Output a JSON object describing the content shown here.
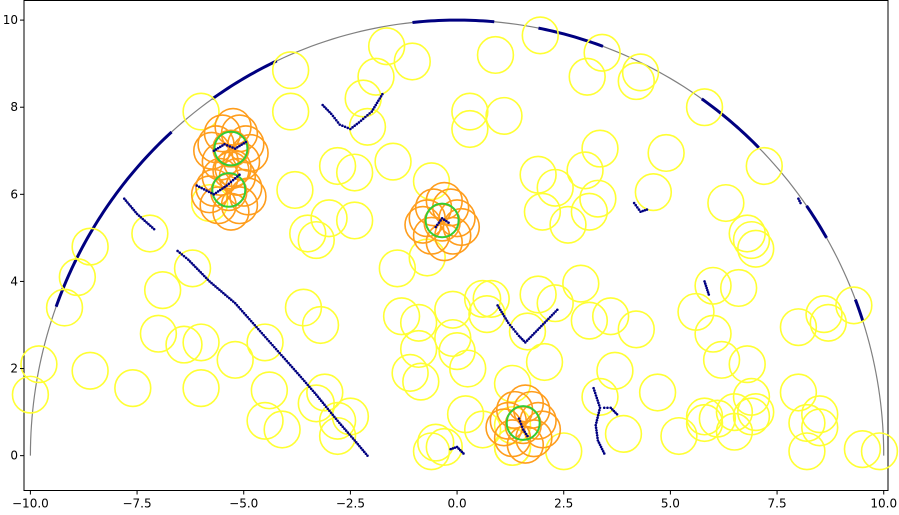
{
  "chart_data": {
    "type": "scatter",
    "title": "",
    "xlabel": "",
    "ylabel": "",
    "xlim": [
      -10.15,
      10.1
    ],
    "ylim": [
      -0.8,
      10.45
    ],
    "grid": false,
    "x_ticks": [
      -10.0,
      -7.5,
      -5.0,
      -2.5,
      0.0,
      2.5,
      5.0,
      7.5,
      10.0
    ],
    "x_tick_labels": [
      "−10.0",
      "−7.5",
      "−5.0",
      "−2.5",
      "0.0",
      "2.5",
      "5.0",
      "7.5",
      "10.0"
    ],
    "y_ticks": [
      0,
      2,
      4,
      6,
      8,
      10
    ],
    "y_tick_labels": [
      "0",
      "2",
      "4",
      "6",
      "8",
      "10"
    ],
    "colors": {
      "boundary": "#808080",
      "arc_highlight": "#000080",
      "yellow": "#ffff33",
      "orange": "#ff9d1c",
      "green": "#33cc33",
      "trail": "#000080"
    },
    "boundary_radius": 10,
    "arc_highlights_deg": [
      [
        160,
        132
      ],
      [
        125,
        115
      ],
      [
        96,
        85
      ],
      [
        79,
        70
      ],
      [
        55,
        45
      ],
      [
        35,
        30
      ],
      [
        21,
        18
      ]
    ],
    "circle_radius": 0.42,
    "yellow_circles": [
      [
        -10,
        1.4
      ],
      [
        -9.8,
        2.1
      ],
      [
        -9.2,
        3.4
      ],
      [
        -8.9,
        4.1
      ],
      [
        -8.6,
        4.8
      ],
      [
        -8.6,
        1.95
      ],
      [
        -7.6,
        1.55
      ],
      [
        -7.2,
        5.1
      ],
      [
        -6.9,
        3.8
      ],
      [
        -7.0,
        2.8
      ],
      [
        -6.4,
        2.55
      ],
      [
        -6.2,
        4.3
      ],
      [
        -6.0,
        7.9
      ],
      [
        -6.0,
        2.6
      ],
      [
        -6.0,
        1.55
      ],
      [
        -5.8,
        5.8
      ],
      [
        -5.2,
        2.2
      ],
      [
        -4.5,
        2.6
      ],
      [
        -4.4,
        1.5
      ],
      [
        -4.5,
        0.8
      ],
      [
        -4.1,
        0.6
      ],
      [
        -3.9,
        8.85
      ],
      [
        -3.9,
        7.9
      ],
      [
        -3.8,
        6.1
      ],
      [
        -3.6,
        3.4
      ],
      [
        -3.5,
        5.1
      ],
      [
        -3.3,
        4.95
      ],
      [
        -3.3,
        1.2
      ],
      [
        -3.1,
        1.45
      ],
      [
        -3.2,
        3.0
      ],
      [
        -3.0,
        5.45
      ],
      [
        -2.8,
        6.65
      ],
      [
        -2.4,
        6.5
      ],
      [
        -2.8,
        0.45
      ],
      [
        -2.8,
        0.8
      ],
      [
        -2.5,
        0.9
      ],
      [
        -2.4,
        5.4
      ],
      [
        -2.2,
        8.2
      ],
      [
        -2.1,
        7.55
      ],
      [
        -1.9,
        8.7
      ],
      [
        -1.65,
        9.4
      ],
      [
        -1.5,
        6.75
      ],
      [
        -1.4,
        4.3
      ],
      [
        -1.3,
        3.2
      ],
      [
        -1.05,
        9.05
      ],
      [
        -0.9,
        3.05
      ],
      [
        -0.9,
        2.45
      ],
      [
        -0.85,
        1.7
      ],
      [
        -1.1,
        1.9
      ],
      [
        -0.7,
        4.55
      ],
      [
        -0.6,
        6.3
      ],
      [
        -0.6,
        0.1
      ],
      [
        -0.5,
        0.3
      ],
      [
        -0.3,
        0.2
      ],
      [
        -0.1,
        3.35
      ],
      [
        -0.1,
        2.7
      ],
      [
        0.0,
        2.4
      ],
      [
        0.3,
        7.9
      ],
      [
        0.3,
        7.5
      ],
      [
        0.25,
        2.0
      ],
      [
        0.2,
        0.95
      ],
      [
        0.6,
        3.6
      ],
      [
        0.7,
        3.25
      ],
      [
        0.6,
        0.6
      ],
      [
        0.8,
        3.6
      ],
      [
        0.9,
        9.2
      ],
      [
        1.1,
        7.8
      ],
      [
        1.3,
        1.65
      ],
      [
        1.3,
        0.2
      ],
      [
        1.3,
        0.7
      ],
      [
        1.3,
        0.2
      ],
      [
        1.65,
        2.85
      ],
      [
        1.9,
        6.45
      ],
      [
        1.9,
        3.7
      ],
      [
        1.95,
        9.65
      ],
      [
        2.0,
        5.6
      ],
      [
        2.05,
        2.15
      ],
      [
        2.3,
        3.5
      ],
      [
        2.3,
        6.15
      ],
      [
        2.5,
        0.1
      ],
      [
        2.6,
        5.3
      ],
      [
        2.9,
        3.95
      ],
      [
        3.0,
        6.55
      ],
      [
        3.05,
        8.7
      ],
      [
        3.1,
        5.6
      ],
      [
        3.1,
        3.1
      ],
      [
        3.3,
        5.9
      ],
      [
        3.35,
        7.05
      ],
      [
        3.35,
        1.35
      ],
      [
        3.4,
        9.25
      ],
      [
        3.6,
        3.2
      ],
      [
        3.7,
        1.95
      ],
      [
        3.9,
        0.5
      ],
      [
        4.2,
        2.9
      ],
      [
        4.2,
        8.6
      ],
      [
        4.3,
        8.8
      ],
      [
        4.6,
        6.05
      ],
      [
        4.7,
        1.45
      ],
      [
        4.9,
        6.95
      ],
      [
        5.2,
        0.45
      ],
      [
        5.6,
        3.3
      ],
      [
        5.8,
        0.9
      ],
      [
        5.8,
        0.75
      ],
      [
        5.8,
        8.0
      ],
      [
        6.0,
        2.8
      ],
      [
        6.0,
        3.9
      ],
      [
        6.1,
        0.85
      ],
      [
        6.2,
        2.2
      ],
      [
        6.3,
        5.8
      ],
      [
        6.5,
        0.55
      ],
      [
        6.5,
        1.0
      ],
      [
        6.6,
        3.85
      ],
      [
        6.8,
        2.1
      ],
      [
        6.8,
        5.1
      ],
      [
        6.9,
        1.35
      ],
      [
        6.9,
        0.9
      ],
      [
        6.9,
        4.95
      ],
      [
        7.0,
        4.75
      ],
      [
        7.0,
        1.0
      ],
      [
        7.2,
        6.65
      ],
      [
        8.0,
        2.95
      ],
      [
        8.0,
        1.45
      ],
      [
        8.2,
        0.75
      ],
      [
        8.2,
        0.1
      ],
      [
        8.5,
        0.95
      ],
      [
        8.5,
        0.65
      ],
      [
        8.6,
        3.25
      ],
      [
        8.7,
        3.05
      ],
      [
        9.3,
        3.45
      ],
      [
        9.5,
        0.15
      ],
      [
        9.9,
        0.1
      ]
    ],
    "orange_clusters": [
      {
        "cx": -5.3,
        "cy": 7.05
      },
      {
        "cx": -5.35,
        "cy": 6.05
      },
      {
        "cx": -0.35,
        "cy": 5.35
      },
      {
        "cx": 1.55,
        "cy": 0.7
      }
    ],
    "orange_offsets": [
      [
        0,
        0
      ],
      [
        0.35,
        0.1
      ],
      [
        -0.35,
        0.1
      ],
      [
        0.2,
        0.35
      ],
      [
        -0.2,
        0.35
      ],
      [
        0.25,
        -0.3
      ],
      [
        -0.25,
        -0.3
      ],
      [
        0.45,
        -0.1
      ],
      [
        -0.45,
        -0.05
      ],
      [
        0.05,
        0.5
      ],
      [
        0.05,
        -0.45
      ]
    ],
    "green_circles": [
      [
        -5.3,
        7.05
      ],
      [
        -5.35,
        6.1
      ],
      [
        -0.35,
        5.4
      ],
      [
        1.55,
        0.75
      ]
    ],
    "trails": [
      [
        [
          -2.1,
          0.0
        ],
        [
          -2.4,
          0.35
        ],
        [
          -2.8,
          0.8
        ],
        [
          -3.3,
          1.4
        ],
        [
          -3.7,
          1.85
        ],
        [
          -4.2,
          2.4
        ],
        [
          -4.7,
          2.95
        ],
        [
          -5.2,
          3.5
        ],
        [
          -5.8,
          4.0
        ],
        [
          -6.3,
          4.5
        ],
        [
          -6.55,
          4.7
        ]
      ],
      [
        [
          -7.8,
          5.9
        ],
        [
          -7.5,
          5.55
        ],
        [
          -7.1,
          5.2
        ]
      ],
      [
        [
          -3.15,
          8.05
        ],
        [
          -2.95,
          7.85
        ],
        [
          -2.75,
          7.6
        ],
        [
          -2.5,
          7.5
        ],
        [
          -2.3,
          7.65
        ],
        [
          -2.0,
          7.9
        ],
        [
          -1.75,
          8.3
        ]
      ],
      [
        [
          -6.1,
          6.2
        ],
        [
          -5.7,
          6.0
        ],
        [
          -5.4,
          6.2
        ],
        [
          -5.1,
          6.45
        ]
      ],
      [
        [
          -5.7,
          7.0
        ],
        [
          -5.45,
          7.15
        ],
        [
          -5.2,
          7.05
        ],
        [
          -4.95,
          7.2
        ]
      ],
      [
        [
          0.95,
          3.45
        ],
        [
          1.2,
          3.05
        ],
        [
          1.45,
          2.75
        ],
        [
          1.6,
          2.6
        ],
        [
          1.85,
          2.85
        ],
        [
          2.1,
          3.1
        ],
        [
          2.35,
          3.35
        ]
      ],
      [
        [
          -0.5,
          5.25
        ],
        [
          -0.35,
          5.45
        ],
        [
          -0.2,
          5.35
        ]
      ],
      [
        [
          -0.15,
          0.15
        ],
        [
          0.0,
          0.2
        ],
        [
          0.15,
          0.05
        ]
      ],
      [
        [
          1.45,
          0.85
        ],
        [
          1.55,
          0.6
        ],
        [
          1.65,
          0.45
        ]
      ],
      [
        [
          3.2,
          1.55
        ],
        [
          3.35,
          1.1
        ],
        [
          3.25,
          0.7
        ],
        [
          3.3,
          0.35
        ],
        [
          3.45,
          0.05
        ]
      ],
      [
        [
          3.45,
          1.1
        ],
        [
          3.6,
          1.1
        ],
        [
          3.75,
          0.95
        ]
      ],
      [
        [
          4.15,
          5.8
        ],
        [
          4.3,
          5.6
        ],
        [
          4.45,
          5.65
        ]
      ],
      [
        [
          5.8,
          4.0
        ],
        [
          5.85,
          3.85
        ],
        [
          5.9,
          3.7
        ]
      ],
      [
        [
          8.0,
          5.9
        ],
        [
          8.05,
          5.8
        ]
      ]
    ]
  }
}
